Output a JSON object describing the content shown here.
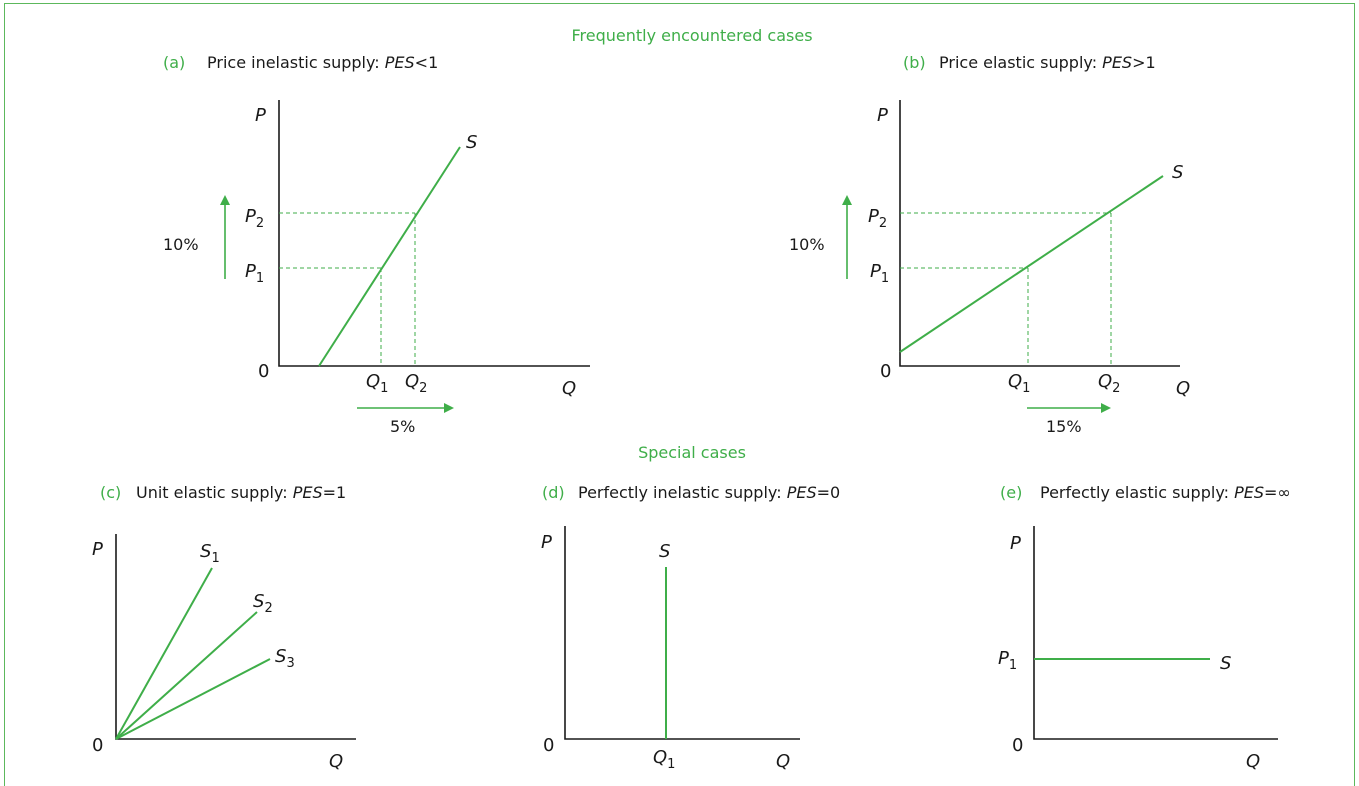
{
  "sections": {
    "frequent": "Frequently encountered cases",
    "special": "Special cases"
  },
  "panels": {
    "a": {
      "letter": "(a)",
      "title": "Price inelastic supply: ",
      "formula_var": "PES",
      "formula_rel": "<1",
      "y_axis": "P",
      "x_axis": "Q",
      "origin": "0",
      "curve": "S",
      "p1": "P",
      "p1_sub": "1",
      "p2": "P",
      "p2_sub": "2",
      "q1": "Q",
      "q1_sub": "1",
      "q2": "Q",
      "q2_sub": "2",
      "price_change": "10%",
      "quantity_change": "5%"
    },
    "b": {
      "letter": "(b)",
      "title": "Price elastic supply: ",
      "formula_var": "PES",
      "formula_rel": ">1",
      "y_axis": "P",
      "x_axis": "Q",
      "origin": "0",
      "curve": "S",
      "p1": "P",
      "p1_sub": "1",
      "p2": "P",
      "p2_sub": "2",
      "q1": "Q",
      "q1_sub": "1",
      "q2": "Q",
      "q2_sub": "2",
      "price_change": "10%",
      "quantity_change": "15%"
    },
    "c": {
      "letter": "(c)",
      "title": "Unit elastic supply: ",
      "formula_var": "PES",
      "formula_rel": "=1",
      "y_axis": "P",
      "x_axis": "Q",
      "origin": "0",
      "s1": "S",
      "s1_sub": "1",
      "s2": "S",
      "s2_sub": "2",
      "s3": "S",
      "s3_sub": "3"
    },
    "d": {
      "letter": "(d)",
      "title": "Perfectly inelastic supply: ",
      "formula_var": "PES",
      "formula_rel": "=0",
      "y_axis": "P",
      "x_axis": "Q",
      "origin": "0",
      "curve": "S",
      "q1": "Q",
      "q1_sub": "1"
    },
    "e": {
      "letter": "(e)",
      "title": "Perfectly elastic supply: ",
      "formula_var": "PES",
      "formula_rel": "=∞",
      "y_axis": "P",
      "x_axis": "Q",
      "origin": "0",
      "curve": "S",
      "p1": "P",
      "p1_sub": "1"
    }
  },
  "colors": {
    "accent": "#3fae49",
    "text": "#1a1a1a",
    "frame": "#5cb85c"
  }
}
